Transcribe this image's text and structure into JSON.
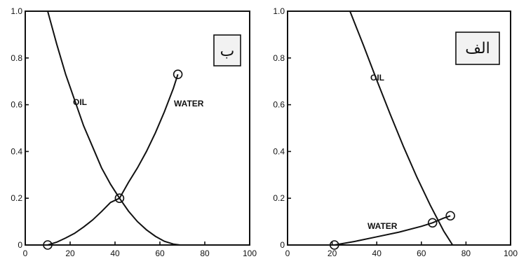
{
  "chart_data": [
    {
      "type": "line",
      "panel_label": "ب",
      "xlim": [
        0,
        100
      ],
      "ylim": [
        0,
        1.0
      ],
      "x_ticks": [
        0,
        20,
        40,
        60,
        80,
        100
      ],
      "y_ticks": [
        0,
        0.2,
        0.4,
        0.6,
        0.8,
        1.0
      ],
      "x_tick_labels": [
        "0",
        "20",
        "40",
        "60",
        "80",
        "100"
      ],
      "y_tick_labels": [
        "0",
        "0.2",
        "0.4",
        "0.6",
        "0.8",
        "1.0"
      ],
      "grid": false,
      "series": [
        {
          "name": "OIL",
          "x": [
            10,
            14,
            18,
            22,
            26,
            30,
            34,
            38,
            42,
            46,
            50,
            54,
            58,
            62,
            66,
            69
          ],
          "y": [
            1.0,
            0.86,
            0.73,
            0.62,
            0.51,
            0.42,
            0.33,
            0.26,
            0.2,
            0.145,
            0.1,
            0.065,
            0.037,
            0.016,
            0.004,
            0.0
          ],
          "markers": []
        },
        {
          "name": "WATER",
          "x": [
            10,
            14,
            18,
            22,
            26,
            30,
            34,
            38,
            42,
            46,
            50,
            54,
            58,
            62,
            66,
            68
          ],
          "y": [
            0.0,
            0.012,
            0.03,
            0.05,
            0.077,
            0.107,
            0.143,
            0.182,
            0.2,
            0.268,
            0.33,
            0.4,
            0.48,
            0.57,
            0.67,
            0.73
          ],
          "markers": [
            [
              10,
              0.0
            ],
            [
              42,
              0.2
            ],
            [
              68,
              0.73
            ]
          ]
        }
      ]
    },
    {
      "type": "line",
      "panel_label": "الف",
      "xlim": [
        0,
        100
      ],
      "ylim": [
        0,
        1.0
      ],
      "x_ticks": [
        0,
        20,
        40,
        60,
        80,
        100
      ],
      "y_ticks": [
        0,
        0.2,
        0.4,
        0.6,
        0.8,
        1.0
      ],
      "x_tick_labels": [
        "0",
        "20",
        "40",
        "60",
        "80",
        "100"
      ],
      "y_tick_labels": [
        "0",
        "0.2",
        "0.4",
        "0.6",
        "0.8",
        "1.0"
      ],
      "grid": false,
      "series": [
        {
          "name": "OIL",
          "x": [
            28,
            34,
            40,
            46,
            52,
            58,
            64,
            70,
            74
          ],
          "y": [
            1.0,
            0.855,
            0.705,
            0.56,
            0.42,
            0.29,
            0.17,
            0.06,
            0.0
          ],
          "markers": []
        },
        {
          "name": "WATER",
          "x": [
            21,
            30,
            40,
            50,
            60,
            65,
            70,
            73
          ],
          "y": [
            0.0,
            0.015,
            0.035,
            0.055,
            0.08,
            0.095,
            0.115,
            0.125
          ],
          "markers": [
            [
              21,
              0.0
            ],
            [
              65,
              0.095
            ],
            [
              73,
              0.125
            ]
          ]
        }
      ]
    }
  ]
}
